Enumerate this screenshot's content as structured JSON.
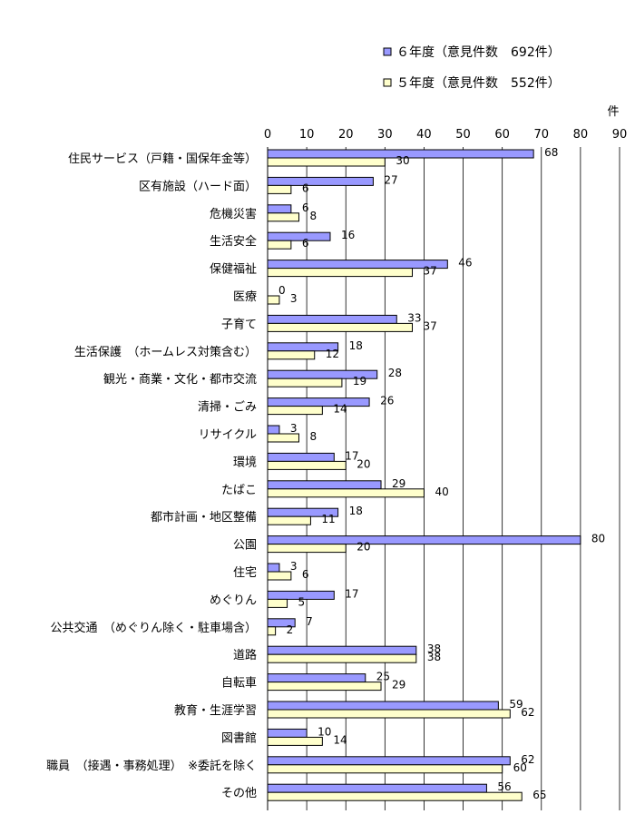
{
  "chart_data": {
    "type": "bar",
    "orientation": "horizontal",
    "unit": "件",
    "xlim": [
      0,
      90
    ],
    "xticks": [
      0,
      10,
      20,
      30,
      40,
      50,
      60,
      70,
      80,
      90
    ],
    "grid": true,
    "legend_position": "top-right",
    "categories": [
      "住民サービス（戸籍・国保年金等）",
      "区有施設（ハード面）",
      "危機災害",
      "生活安全",
      "保健福祉",
      "医療",
      "子育て",
      "生活保護　（ホームレス対策含む）",
      "観光・商業・文化・都市交流",
      "清掃・ごみ",
      "リサイクル",
      "環境",
      "たばこ",
      "都市計画・地区整備",
      "公園",
      "住宅",
      "めぐりん",
      "公共交通　（めぐりん除く・駐車場含）",
      "道路",
      "自転車",
      "教育・生涯学習",
      "図書館",
      "職員　（接遇・事務処理）　※委託を除く",
      "その他"
    ],
    "series": [
      {
        "name": "６年度（意見件数　692件）",
        "color": "#9999ff",
        "values": [
          68,
          27,
          6,
          16,
          46,
          0,
          33,
          18,
          28,
          26,
          3,
          17,
          29,
          18,
          80,
          3,
          17,
          7,
          38,
          25,
          59,
          10,
          62,
          56
        ]
      },
      {
        "name": "５年度（意見件数　552件）",
        "color": "#ffffcc",
        "values": [
          30,
          6,
          8,
          6,
          37,
          3,
          37,
          12,
          19,
          14,
          8,
          20,
          40,
          11,
          20,
          6,
          5,
          2,
          38,
          29,
          62,
          14,
          60,
          65
        ]
      }
    ]
  }
}
